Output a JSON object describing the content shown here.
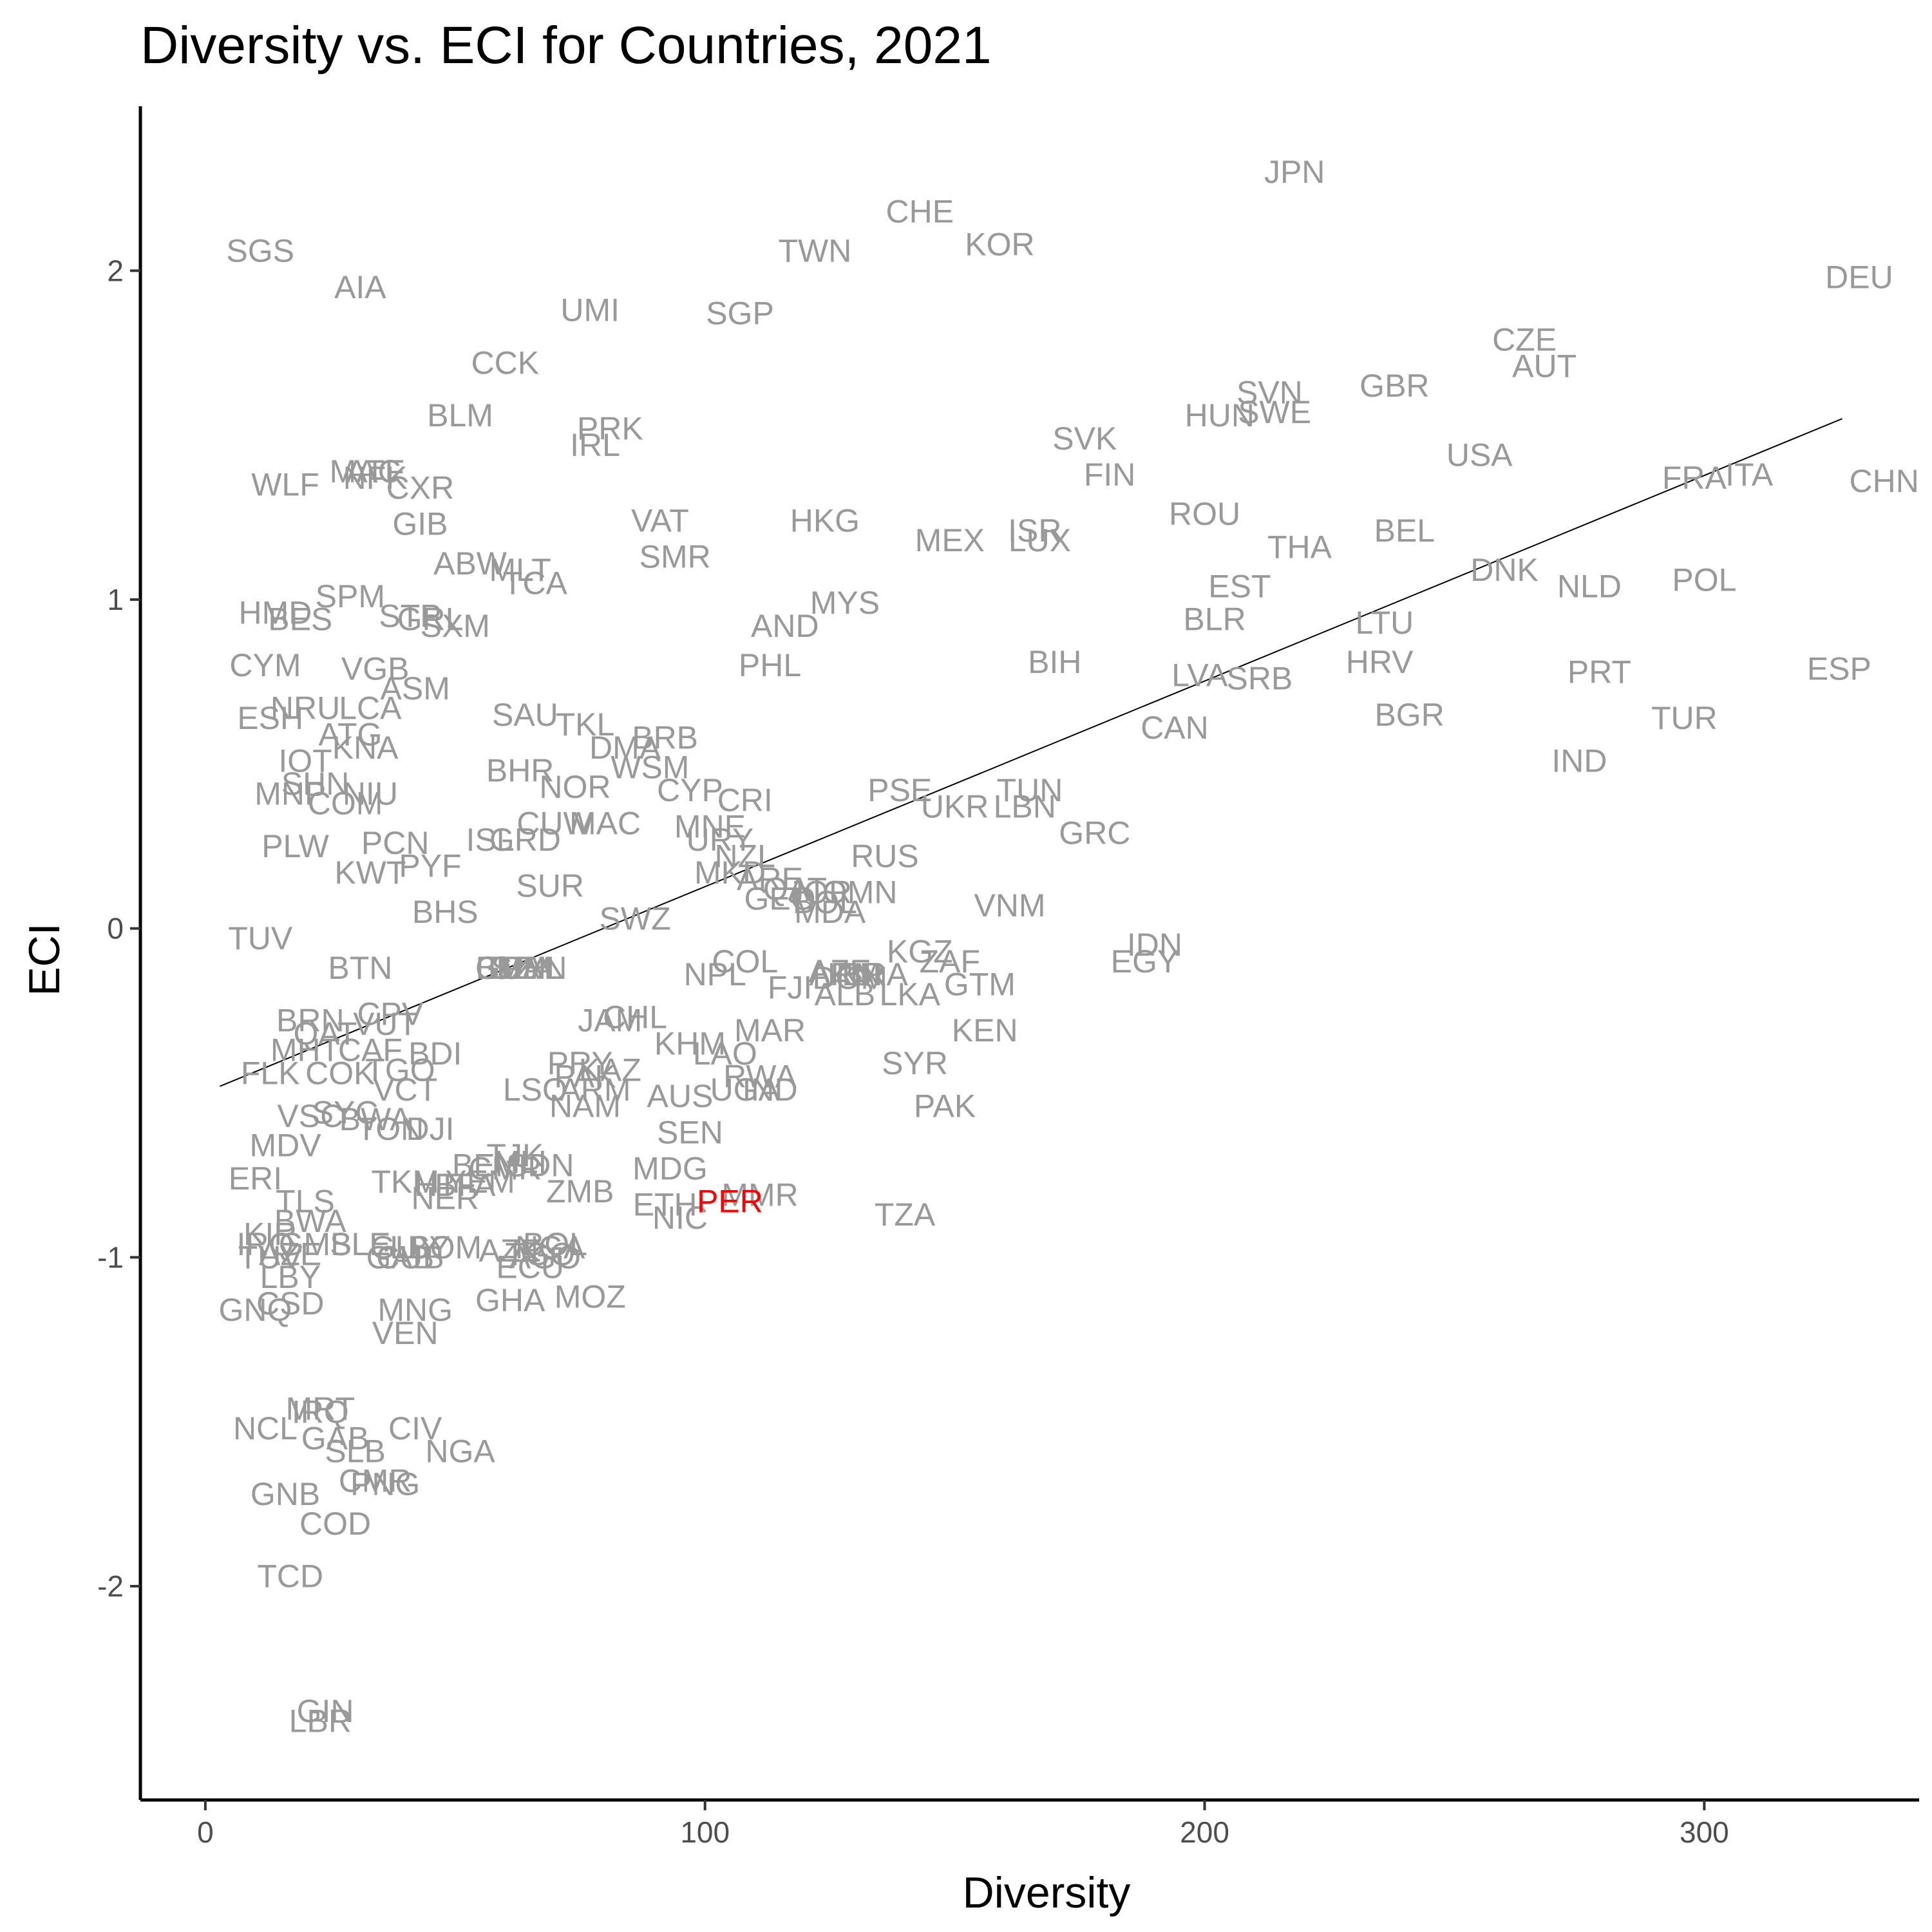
{
  "chart_data": {
    "type": "scatter",
    "title": "Diversity vs. ECI for Countries, 2021",
    "xlabel": "Diversity",
    "ylabel": "ECI",
    "xlim": [
      -13,
      343
    ],
    "ylim": [
      -2.65,
      2.5
    ],
    "x_ticks": [
      0,
      100,
      200,
      300
    ],
    "y_ticks": [
      -2,
      -1,
      0,
      1,
      2
    ],
    "grid": false,
    "legend": "none",
    "label_color": "#999999",
    "highlight": "PER",
    "highlight_color": "#FF0000",
    "fit_line": {
      "x": [
        2.9,
        327.6
      ],
      "y": [
        -0.48,
        1.55
      ]
    },
    "points": [
      {
        "label": "JPN",
        "x": 218,
        "y": 2.3
      },
      {
        "label": "CHE",
        "x": 143,
        "y": 2.18
      },
      {
        "label": "KOR",
        "x": 159,
        "y": 2.08
      },
      {
        "label": "TWN",
        "x": 122,
        "y": 2.06
      },
      {
        "label": "SGS",
        "x": 11,
        "y": 2.06
      },
      {
        "label": "DEU",
        "x": 331,
        "y": 1.98
      },
      {
        "label": "AIA",
        "x": 31,
        "y": 1.95
      },
      {
        "label": "UMI",
        "x": 77,
        "y": 1.88
      },
      {
        "label": "SGP",
        "x": 107,
        "y": 1.87
      },
      {
        "label": "CZE",
        "x": 264,
        "y": 1.79
      },
      {
        "label": "AUT",
        "x": 268,
        "y": 1.71
      },
      {
        "label": "CCK",
        "x": 60,
        "y": 1.72
      },
      {
        "label": "SVN",
        "x": 213,
        "y": 1.63
      },
      {
        "label": "GBR",
        "x": 238,
        "y": 1.65
      },
      {
        "label": "SWE",
        "x": 214,
        "y": 1.57
      },
      {
        "label": "HUN",
        "x": 203,
        "y": 1.56
      },
      {
        "label": "BLM",
        "x": 51,
        "y": 1.56
      },
      {
        "label": "PRK",
        "x": 81,
        "y": 1.52
      },
      {
        "label": "IRL",
        "x": 78,
        "y": 1.47
      },
      {
        "label": "SVK",
        "x": 176,
        "y": 1.49
      },
      {
        "label": "USA",
        "x": 255,
        "y": 1.44
      },
      {
        "label": "MAC",
        "x": 32,
        "y": 1.39
      },
      {
        "label": "ATF",
        "x": 34,
        "y": 1.39
      },
      {
        "label": "NFK",
        "x": 34,
        "y": 1.37
      },
      {
        "label": "CXR",
        "x": 43,
        "y": 1.34
      },
      {
        "label": "WLF",
        "x": 16,
        "y": 1.35
      },
      {
        "label": "FIN",
        "x": 181,
        "y": 1.38
      },
      {
        "label": "FRA",
        "x": 298,
        "y": 1.37
      },
      {
        "label": "ITA",
        "x": 309,
        "y": 1.38
      },
      {
        "label": "CHN",
        "x": 336,
        "y": 1.36
      },
      {
        "label": "GIB",
        "x": 43,
        "y": 1.23
      },
      {
        "label": "VAT",
        "x": 91,
        "y": 1.24
      },
      {
        "label": "HKG",
        "x": 124,
        "y": 1.24
      },
      {
        "label": "ROU",
        "x": 200,
        "y": 1.26
      },
      {
        "label": "ISR",
        "x": 166,
        "y": 1.21
      },
      {
        "label": "MEX",
        "x": 149,
        "y": 1.18
      },
      {
        "label": "LUX",
        "x": 167,
        "y": 1.18
      },
      {
        "label": "BEL",
        "x": 240,
        "y": 1.21
      },
      {
        "label": "THA",
        "x": 219,
        "y": 1.16
      },
      {
        "label": "SMR",
        "x": 94,
        "y": 1.13
      },
      {
        "label": "ABW",
        "x": 53,
        "y": 1.11
      },
      {
        "label": "MLT",
        "x": 63,
        "y": 1.09
      },
      {
        "label": "TCA",
        "x": 66,
        "y": 1.05
      },
      {
        "label": "DNK",
        "x": 260,
        "y": 1.09
      },
      {
        "label": "EST",
        "x": 207,
        "y": 1.04
      },
      {
        "label": "NLD",
        "x": 277,
        "y": 1.04
      },
      {
        "label": "POL",
        "x": 300,
        "y": 1.06
      },
      {
        "label": "SPM",
        "x": 29,
        "y": 1.01
      },
      {
        "label": "MYS",
        "x": 128,
        "y": 0.99
      },
      {
        "label": "HMD",
        "x": 14,
        "y": 0.96
      },
      {
        "label": "STP",
        "x": 41,
        "y": 0.95
      },
      {
        "label": "GRL",
        "x": 45,
        "y": 0.94
      },
      {
        "label": "BES",
        "x": 19,
        "y": 0.94
      },
      {
        "label": "SXM",
        "x": 50,
        "y": 0.92
      },
      {
        "label": "BLR",
        "x": 202,
        "y": 0.94
      },
      {
        "label": "LTU",
        "x": 236,
        "y": 0.93
      },
      {
        "label": "AND",
        "x": 116,
        "y": 0.92
      },
      {
        "label": "CYM",
        "x": 12,
        "y": 0.8
      },
      {
        "label": "VGB",
        "x": 34,
        "y": 0.79
      },
      {
        "label": "PHL",
        "x": 113,
        "y": 0.8
      },
      {
        "label": "BIH",
        "x": 170,
        "y": 0.81
      },
      {
        "label": "HRV",
        "x": 235,
        "y": 0.81
      },
      {
        "label": "LVA",
        "x": 199,
        "y": 0.77
      },
      {
        "label": "SRB",
        "x": 211,
        "y": 0.76
      },
      {
        "label": "PRT",
        "x": 279,
        "y": 0.78
      },
      {
        "label": "ESP",
        "x": 327,
        "y": 0.79
      },
      {
        "label": "ASM",
        "x": 42,
        "y": 0.73
      },
      {
        "label": "NRU",
        "x": 20,
        "y": 0.67
      },
      {
        "label": "LCA",
        "x": 33,
        "y": 0.67
      },
      {
        "label": "ESH",
        "x": 13,
        "y": 0.64
      },
      {
        "label": "SAU",
        "x": 64,
        "y": 0.65
      },
      {
        "label": "TKL",
        "x": 76,
        "y": 0.62
      },
      {
        "label": "BGR",
        "x": 241,
        "y": 0.65
      },
      {
        "label": "TUR",
        "x": 296,
        "y": 0.64
      },
      {
        "label": "CAN",
        "x": 194,
        "y": 0.61
      },
      {
        "label": "ATG",
        "x": 29,
        "y": 0.59
      },
      {
        "label": "BRB",
        "x": 92,
        "y": 0.58
      },
      {
        "label": "KNA",
        "x": 32,
        "y": 0.55
      },
      {
        "label": "DMA",
        "x": 84,
        "y": 0.55
      },
      {
        "label": "IOT",
        "x": 20,
        "y": 0.51
      },
      {
        "label": "IND",
        "x": 275,
        "y": 0.51
      },
      {
        "label": "WSM",
        "x": 89,
        "y": 0.49
      },
      {
        "label": "BHR",
        "x": 63,
        "y": 0.48
      },
      {
        "label": "SHN",
        "x": 22,
        "y": 0.44
      },
      {
        "label": "NOR",
        "x": 74,
        "y": 0.43
      },
      {
        "label": "MNP",
        "x": 17,
        "y": 0.41
      },
      {
        "label": "NIU",
        "x": 33,
        "y": 0.41
      },
      {
        "label": "COM",
        "x": 28,
        "y": 0.38
      },
      {
        "label": "CYP",
        "x": 97,
        "y": 0.42
      },
      {
        "label": "CRI",
        "x": 108,
        "y": 0.39
      },
      {
        "label": "PSE",
        "x": 139,
        "y": 0.42
      },
      {
        "label": "TUN",
        "x": 165,
        "y": 0.42
      },
      {
        "label": "UKR",
        "x": 150,
        "y": 0.37
      },
      {
        "label": "LBN",
        "x": 164,
        "y": 0.37
      },
      {
        "label": "GRC",
        "x": 178,
        "y": 0.29
      },
      {
        "label": "CUW",
        "x": 70,
        "y": 0.32
      },
      {
        "label": "MAC",
        "x": 80,
        "y": 0.32
      },
      {
        "label": "MNE",
        "x": 101,
        "y": 0.31
      },
      {
        "label": "URY",
        "x": 103,
        "y": 0.27
      },
      {
        "label": "PLW",
        "x": 18,
        "y": 0.25
      },
      {
        "label": "PCN",
        "x": 38,
        "y": 0.26
      },
      {
        "label": "ISL",
        "x": 57,
        "y": 0.27
      },
      {
        "label": "GRD",
        "x": 64,
        "y": 0.27
      },
      {
        "label": "NZL",
        "x": 108,
        "y": 0.22
      },
      {
        "label": "RUS",
        "x": 136,
        "y": 0.22
      },
      {
        "label": "PYF",
        "x": 45,
        "y": 0.19
      },
      {
        "label": "KWT",
        "x": 33,
        "y": 0.17
      },
      {
        "label": "MKD",
        "x": 105,
        "y": 0.17
      },
      {
        "label": "ARE",
        "x": 113,
        "y": 0.15
      },
      {
        "label": "QAT",
        "x": 118,
        "y": 0.12
      },
      {
        "label": "JOR",
        "x": 123,
        "y": 0.11
      },
      {
        "label": "OMN",
        "x": 131,
        "y": 0.11
      },
      {
        "label": "SUR",
        "x": 69,
        "y": 0.13
      },
      {
        "label": "GEO",
        "x": 115,
        "y": 0.09
      },
      {
        "label": "BOL",
        "x": 124,
        "y": 0.08
      },
      {
        "label": "MDA",
        "x": 125,
        "y": 0.05
      },
      {
        "label": "VNM",
        "x": 161,
        "y": 0.07
      },
      {
        "label": "BHS",
        "x": 48,
        "y": 0.05
      },
      {
        "label": "SWZ",
        "x": 86,
        "y": 0.03
      },
      {
        "label": "TUV",
        "x": 11,
        "y": -0.03
      },
      {
        "label": "IDN",
        "x": 190,
        "y": -0.05
      },
      {
        "label": "EGY",
        "x": 188,
        "y": -0.1
      },
      {
        "label": "KGZ",
        "x": 143,
        "y": -0.07
      },
      {
        "label": "ZAF",
        "x": 149,
        "y": -0.1
      },
      {
        "label": "BTN",
        "x": 31,
        "y": -0.12
      },
      {
        "label": "BLZ",
        "x": 60,
        "y": -0.12
      },
      {
        "label": "GUY",
        "x": 61,
        "y": -0.12
      },
      {
        "label": "DZA",
        "x": 63,
        "y": -0.12
      },
      {
        "label": "SLV",
        "x": 63,
        "y": -0.12
      },
      {
        "label": "MHL",
        "x": 65,
        "y": -0.12
      },
      {
        "label": "PAN",
        "x": 66,
        "y": -0.12
      },
      {
        "label": "COL",
        "x": 108,
        "y": -0.1
      },
      {
        "label": "NPL",
        "x": 102,
        "y": -0.14
      },
      {
        "label": "ARM",
        "x": 128,
        "y": -0.14
      },
      {
        "label": "IRN",
        "x": 130,
        "y": -0.14
      },
      {
        "label": "AZE",
        "x": 127,
        "y": -0.13
      },
      {
        "label": "BRA",
        "x": 134,
        "y": -0.14
      },
      {
        "label": "DOM",
        "x": 129,
        "y": -0.15
      },
      {
        "label": "FJI",
        "x": 117,
        "y": -0.18
      },
      {
        "label": "ALB",
        "x": 128,
        "y": -0.2
      },
      {
        "label": "GTM",
        "x": 155,
        "y": -0.17
      },
      {
        "label": "LKA",
        "x": 141,
        "y": -0.2
      },
      {
        "label": "BRN",
        "x": 21,
        "y": -0.28
      },
      {
        "label": "CPV",
        "x": 37,
        "y": -0.26
      },
      {
        "label": "VUT",
        "x": 36,
        "y": -0.29
      },
      {
        "label": "JAM",
        "x": 81,
        "y": -0.28
      },
      {
        "label": "CHL",
        "x": 86,
        "y": -0.27
      },
      {
        "label": "MAR",
        "x": 113,
        "y": -0.31
      },
      {
        "label": "KEN",
        "x": 156,
        "y": -0.31
      },
      {
        "label": "QAT2",
        "x": 24,
        "y": -0.32
      },
      {
        "label": "CAF",
        "x": 33,
        "y": -0.37
      },
      {
        "label": "BDI",
        "x": 46,
        "y": -0.38
      },
      {
        "label": "MHT",
        "x": 20,
        "y": -0.37
      },
      {
        "label": "KHM",
        "x": 97,
        "y": -0.35
      },
      {
        "label": "LAO",
        "x": 104,
        "y": -0.38
      },
      {
        "label": "SYR",
        "x": 142,
        "y": -0.41
      },
      {
        "label": "FLK",
        "x": 13,
        "y": -0.44
      },
      {
        "label": "COK",
        "x": 27,
        "y": -0.44
      },
      {
        "label": "TGO",
        "x": 39,
        "y": -0.43
      },
      {
        "label": "PRY",
        "x": 75,
        "y": -0.41
      },
      {
        "label": "KAZ",
        "x": 81,
        "y": -0.43
      },
      {
        "label": "PAK2",
        "x": 76,
        "y": -0.45
      },
      {
        "label": "RWA",
        "x": 111,
        "y": -0.45
      },
      {
        "label": "VCT",
        "x": 40,
        "y": -0.49
      },
      {
        "label": "LSO",
        "x": 66,
        "y": -0.49
      },
      {
        "label": "ARM2",
        "x": 78,
        "y": -0.49
      },
      {
        "label": "AUS",
        "x": 95,
        "y": -0.51
      },
      {
        "label": "UGA",
        "x": 108,
        "y": -0.49
      },
      {
        "label": "IND2",
        "x": 113,
        "y": -0.49
      },
      {
        "label": "PAK",
        "x": 148,
        "y": -0.54
      },
      {
        "label": "NAM",
        "x": 76,
        "y": -0.54
      },
      {
        "label": "VSC",
        "x": 21,
        "y": -0.57
      },
      {
        "label": "SYC",
        "x": 28,
        "y": -0.56
      },
      {
        "label": "BWA",
        "x": 34,
        "y": -0.58
      },
      {
        "label": "TON",
        "x": 37,
        "y": -0.61
      },
      {
        "label": "DJI",
        "x": 45,
        "y": -0.61
      },
      {
        "label": "SEN",
        "x": 97,
        "y": -0.62
      },
      {
        "label": "MDV",
        "x": 16,
        "y": -0.66
      },
      {
        "label": "TJK",
        "x": 62,
        "y": -0.69
      },
      {
        "label": "BEN",
        "x": 56,
        "y": -0.72
      },
      {
        "label": "MLI",
        "x": 63,
        "y": -0.71
      },
      {
        "label": "CMR",
        "x": 60,
        "y": -0.73
      },
      {
        "label": "SDN",
        "x": 67,
        "y": -0.72
      },
      {
        "label": "MDG",
        "x": 93,
        "y": -0.73
      },
      {
        "label": "ERI",
        "x": 10,
        "y": -0.76
      },
      {
        "label": "HTI",
        "x": 47,
        "y": -0.78
      },
      {
        "label": "TKM",
        "x": 40,
        "y": -0.77
      },
      {
        "label": "YEM",
        "x": 55,
        "y": -0.77
      },
      {
        "label": "BFA",
        "x": 52,
        "y": -0.78
      },
      {
        "label": "ZMB",
        "x": 75,
        "y": -0.8
      },
      {
        "label": "NER",
        "x": 48,
        "y": -0.82
      },
      {
        "label": "MMR",
        "x": 111,
        "y": -0.81
      },
      {
        "label": "TLS",
        "x": 20,
        "y": -0.83
      },
      {
        "label": "ETH",
        "x": 92,
        "y": -0.84
      },
      {
        "label": "PER",
        "x": 105,
        "y": -0.83
      },
      {
        "label": "NIC",
        "x": 95,
        "y": -0.88
      },
      {
        "label": "TZA",
        "x": 140,
        "y": -0.87
      },
      {
        "label": "BWA2",
        "x": 21,
        "y": -0.89
      },
      {
        "label": "KIR",
        "x": 13,
        "y": -0.93
      },
      {
        "label": "IRQ",
        "x": 12,
        "y": -0.96
      },
      {
        "label": "GMB",
        "x": 22,
        "y": -0.96
      },
      {
        "label": "SLE",
        "x": 31,
        "y": -0.96
      },
      {
        "label": "GUY2",
        "x": 40,
        "y": -0.97
      },
      {
        "label": "LBY2",
        "x": 43,
        "y": -0.97
      },
      {
        "label": "SOM",
        "x": 48,
        "y": -0.97
      },
      {
        "label": "AZE2",
        "x": 61,
        "y": -0.98
      },
      {
        "label": "NGA2",
        "x": 69,
        "y": -0.97
      },
      {
        "label": "BOL2",
        "x": 70,
        "y": -0.96
      },
      {
        "label": "TGO2",
        "x": 67,
        "y": -0.99
      },
      {
        "label": "AGO",
        "x": 68,
        "y": -1.0
      },
      {
        "label": "TUV2",
        "x": 13,
        "y": -1.0
      },
      {
        "label": "AZE3",
        "x": 17,
        "y": -0.99
      },
      {
        "label": "CUB",
        "x": 41,
        "y": -1.0
      },
      {
        "label": "GAB2",
        "x": 39,
        "y": -1.0
      },
      {
        "label": "ECU",
        "x": 65,
        "y": -1.03
      },
      {
        "label": "LBY",
        "x": 17,
        "y": -1.06
      },
      {
        "label": "GHA",
        "x": 61,
        "y": -1.13
      },
      {
        "label": "MOZ",
        "x": 77,
        "y": -1.12
      },
      {
        "label": "GNQ",
        "x": 10,
        "y": -1.16
      },
      {
        "label": "CSD",
        "x": 17,
        "y": -1.14
      },
      {
        "label": "MNG",
        "x": 42,
        "y": -1.16
      },
      {
        "label": "VEN",
        "x": 40,
        "y": -1.23
      },
      {
        "label": "MRT",
        "x": 23,
        "y": -1.46
      },
      {
        "label": "IRQ2",
        "x": 23,
        "y": -1.47
      },
      {
        "label": "NCL",
        "x": 12,
        "y": -1.52
      },
      {
        "label": "CIV",
        "x": 42,
        "y": -1.52
      },
      {
        "label": "GAB",
        "x": 26,
        "y": -1.55
      },
      {
        "label": "SLB",
        "x": 30,
        "y": -1.59
      },
      {
        "label": "NGA",
        "x": 51,
        "y": -1.59
      },
      {
        "label": "CMR2",
        "x": 34,
        "y": -1.68
      },
      {
        "label": "PNG",
        "x": 36,
        "y": -1.69
      },
      {
        "label": "GNB",
        "x": 16,
        "y": -1.72
      },
      {
        "label": "COD",
        "x": 26,
        "y": -1.81
      },
      {
        "label": "TCD",
        "x": 17,
        "y": -1.97
      },
      {
        "label": "GIN",
        "x": 24,
        "y": -2.38
      },
      {
        "label": "LBR",
        "x": 23,
        "y": -2.41
      }
    ]
  }
}
